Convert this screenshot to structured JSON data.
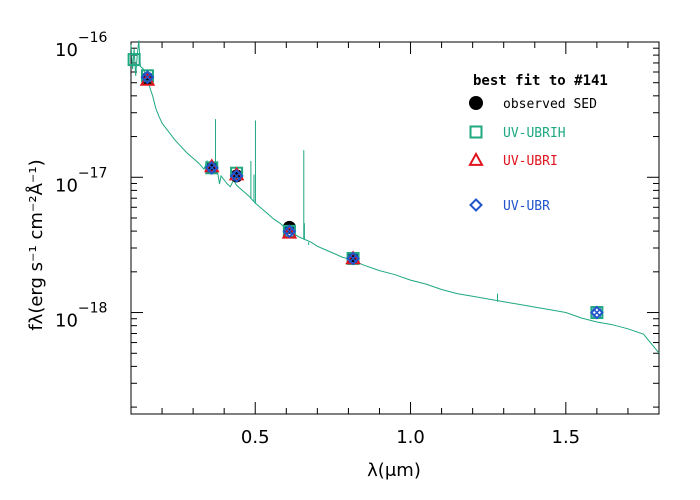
{
  "chart_data": {
    "type": "scatter",
    "title": "",
    "xlabel": "λ(μm)",
    "ylabel": "fλ(erg s⁻¹ cm⁻²Å⁻¹)",
    "xlim": [
      0.1,
      1.8
    ],
    "ylim_log10": [
      -18.75,
      -16
    ],
    "y_scale": "log",
    "x_ticks": [
      {
        "value": 0.5,
        "label": "0.5"
      },
      {
        "value": 1.0,
        "label": "1.0"
      },
      {
        "value": 1.5,
        "label": "1.5"
      }
    ],
    "y_ticks": [
      {
        "value": -16,
        "label_base": "10",
        "label_exp": "−16"
      },
      {
        "value": -17,
        "label_base": "10",
        "label_exp": "−17"
      },
      {
        "value": -18,
        "label_base": "10",
        "label_exp": "−18"
      }
    ],
    "legend": {
      "title": "best fit to #141",
      "placement": "top-right"
    },
    "series": [
      {
        "name": "observed SED",
        "marker": "circle-filled",
        "color": "#000000",
        "points": [
          [
            0.153,
            -16.27
          ],
          [
            0.36,
            -16.93
          ],
          [
            0.44,
            -16.99
          ],
          [
            0.61,
            -17.37
          ],
          [
            0.815,
            -17.6
          ]
        ]
      },
      {
        "name": "UV-UBRIH",
        "marker": "square",
        "color": "#1fa882",
        "points": [
          [
            0.11,
            -16.13
          ],
          [
            0.153,
            -16.25
          ],
          [
            0.36,
            -16.93
          ],
          [
            0.44,
            -16.97
          ],
          [
            0.61,
            -17.4
          ],
          [
            0.815,
            -17.6
          ],
          [
            1.6,
            -18.0
          ]
        ]
      },
      {
        "name": "UV-UBRI",
        "marker": "triangle",
        "color": "#e0141e",
        "points": [
          [
            0.153,
            -16.28
          ],
          [
            0.36,
            -16.92
          ],
          [
            0.44,
            -16.98
          ],
          [
            0.61,
            -17.41
          ],
          [
            0.815,
            -17.6
          ]
        ]
      },
      {
        "name": "UV-UBR",
        "marker": "diamond",
        "color": "#2255cc",
        "points": [
          [
            0.153,
            -16.26
          ],
          [
            0.36,
            -16.93
          ],
          [
            0.44,
            -16.99
          ],
          [
            0.61,
            -17.4
          ],
          [
            0.815,
            -17.6
          ],
          [
            1.6,
            -18.0
          ]
        ]
      }
    ],
    "cross_markers": [
      [
        0.153,
        -16.26
      ],
      [
        0.36,
        -16.93
      ],
      [
        0.44,
        -16.99
      ],
      [
        0.61,
        -17.4
      ],
      [
        0.815,
        -17.6
      ],
      [
        1.6,
        -18.0
      ]
    ],
    "spectrum": {
      "color": "#1fa882",
      "points": [
        [
          0.1,
          -16.02
        ],
        [
          0.105,
          -16.2
        ],
        [
          0.11,
          -16.05
        ],
        [
          0.115,
          -16.25
        ],
        [
          0.12,
          -16.1
        ],
        [
          0.125,
          -15.99
        ],
        [
          0.13,
          -16.18
        ],
        [
          0.14,
          -16.2
        ],
        [
          0.15,
          -16.26
        ],
        [
          0.16,
          -16.33
        ],
        [
          0.17,
          -16.4
        ],
        [
          0.18,
          -16.49
        ],
        [
          0.19,
          -16.55
        ],
        [
          0.2,
          -16.6
        ],
        [
          0.22,
          -16.66
        ],
        [
          0.24,
          -16.72
        ],
        [
          0.26,
          -16.77
        ],
        [
          0.28,
          -16.82
        ],
        [
          0.3,
          -16.86
        ],
        [
          0.32,
          -16.9
        ],
        [
          0.335,
          -16.94
        ],
        [
          0.345,
          -16.88
        ],
        [
          0.355,
          -16.92
        ],
        [
          0.37,
          -16.95
        ],
        [
          0.38,
          -16.98
        ],
        [
          0.385,
          -17.05
        ],
        [
          0.39,
          -16.99
        ],
        [
          0.4,
          -17.02
        ],
        [
          0.41,
          -17.05
        ],
        [
          0.42,
          -17.07
        ],
        [
          0.43,
          -17.02
        ],
        [
          0.44,
          -17.06
        ],
        [
          0.46,
          -17.1
        ],
        [
          0.48,
          -17.14
        ],
        [
          0.5,
          -17.19
        ],
        [
          0.52,
          -17.23
        ],
        [
          0.54,
          -17.27
        ],
        [
          0.56,
          -17.31
        ],
        [
          0.58,
          -17.34
        ],
        [
          0.6,
          -17.38
        ],
        [
          0.62,
          -17.41
        ],
        [
          0.64,
          -17.44
        ],
        [
          0.66,
          -17.46
        ],
        [
          0.68,
          -17.48
        ],
        [
          0.7,
          -17.51
        ],
        [
          0.72,
          -17.53
        ],
        [
          0.75,
          -17.56
        ],
        [
          0.78,
          -17.59
        ],
        [
          0.81,
          -17.61
        ],
        [
          0.85,
          -17.65
        ],
        [
          0.9,
          -17.69
        ],
        [
          0.95,
          -17.72
        ],
        [
          1.0,
          -17.76
        ],
        [
          1.05,
          -17.79
        ],
        [
          1.1,
          -17.83
        ],
        [
          1.15,
          -17.86
        ],
        [
          1.2,
          -17.88
        ],
        [
          1.25,
          -17.9
        ],
        [
          1.3,
          -17.92
        ],
        [
          1.35,
          -17.94
        ],
        [
          1.4,
          -17.96
        ],
        [
          1.45,
          -17.98
        ],
        [
          1.5,
          -18.0
        ],
        [
          1.55,
          -18.04
        ],
        [
          1.6,
          -18.07
        ],
        [
          1.65,
          -18.09
        ],
        [
          1.7,
          -18.12
        ],
        [
          1.75,
          -18.16
        ],
        [
          1.8,
          -18.3
        ]
      ],
      "spikes": [
        [
          0.372,
          -16.91,
          -16.57
        ],
        [
          0.5007,
          -17.19,
          -16.58
        ],
        [
          0.6563,
          -17.46,
          -16.8
        ],
        [
          0.672,
          -17.48,
          -17.5
        ],
        [
          0.6583,
          -17.46,
          -17.34
        ],
        [
          0.486,
          -17.16,
          -16.88
        ],
        [
          0.4959,
          -17.18,
          -16.98
        ],
        [
          1.28,
          -17.92,
          -17.86
        ]
      ]
    }
  }
}
